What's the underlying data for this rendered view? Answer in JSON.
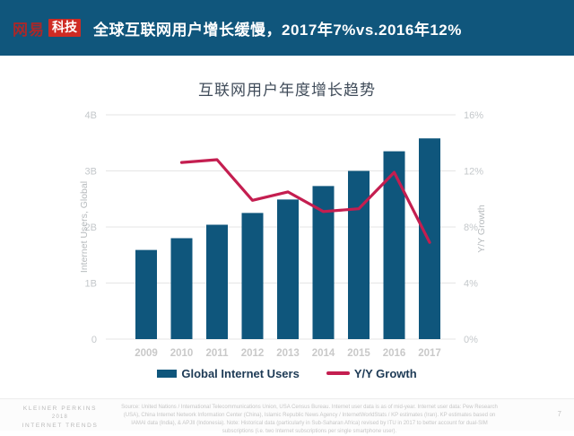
{
  "header": {
    "logo": {
      "brand": "网易",
      "sub": "科技"
    },
    "title": "全球互联网用户增长缓慢，2017年7%vs.2016年12%"
  },
  "chart": {
    "title": "互联网用户年度增长趋势"
  },
  "chart_data": {
    "type": "bar",
    "title": "互联网用户年度增长趋势",
    "categories": [
      "2009",
      "2010",
      "2011",
      "2012",
      "2013",
      "2014",
      "2015",
      "2016",
      "2017"
    ],
    "series": [
      {
        "name": "Global Internet Users",
        "type": "bar",
        "axis": "left",
        "unit": "B",
        "color": "#0F567C",
        "values": [
          1.59,
          1.8,
          2.04,
          2.25,
          2.49,
          2.73,
          3.0,
          3.35,
          3.58
        ]
      },
      {
        "name": "Y/Y Growth",
        "type": "line",
        "axis": "right",
        "unit": "%",
        "color": "#C41E50",
        "values": [
          null,
          12.6,
          12.8,
          9.9,
          10.5,
          9.1,
          9.3,
          11.9,
          6.9
        ]
      }
    ],
    "left_axis": {
      "label": "Internet Users, Global",
      "min": 0,
      "max": 4,
      "ticks": [
        "0",
        "1B",
        "2B",
        "3B",
        "4B"
      ]
    },
    "right_axis": {
      "label": "Y/Y Growth",
      "min": 0,
      "max": 16,
      "ticks": [
        "0%",
        "4%",
        "8%",
        "12%",
        "16%"
      ]
    },
    "legend": [
      {
        "label": "Global Internet Users",
        "type": "bar"
      },
      {
        "label": "Y/Y Growth",
        "type": "line"
      }
    ],
    "grid": true,
    "legend_position": "bottom"
  },
  "footer": {
    "brand_lines": [
      "KLEINER PERKINS",
      "2018",
      "INTERNET TRENDS"
    ],
    "source": "Source: United Nations / International Telecommunications Union, USA Census Bureau. Internet user data is as of mid-year. Internet user data: Pew Research (USA), China Internet Network Information Center (China), Islamic Republic News Agency / InternetWorldStats / KP estimates (Iran). KP estimates based on IAMAI data (India), & APJII (Indonesia). Note: Historical data (particularly in Sub-Saharan Africa) revised by ITU in 2017 to better account for dual-SIM subscriptions (i.e. two Internet subscriptions per single smartphone user).",
    "page_number": "7"
  },
  "colors": {
    "header_bg": "#10567C",
    "logo_red": "#CF2B24",
    "bar": "#0F567C",
    "line": "#C41E50",
    "grid": "#E5E5E5",
    "axis_text": "#C4C8CB",
    "legend_text": "#1D3A55"
  }
}
